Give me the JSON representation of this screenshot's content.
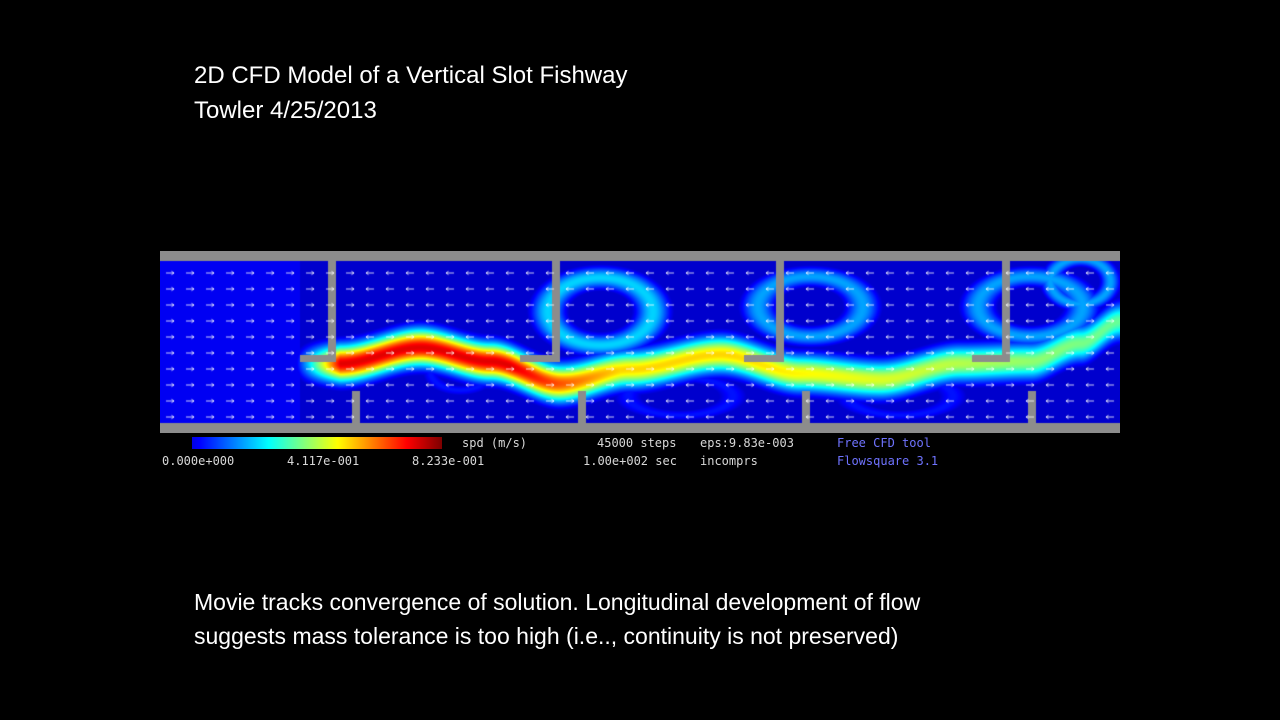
{
  "slide": {
    "title_line1": "2D CFD Model of a Vertical Slot Fishway",
    "title_line2": "Towler 4/25/2013",
    "caption_line1": "Movie tracks convergence of solution.  Longitudinal development of flow",
    "caption_line2": "suggests mass tolerance is too high (i.e.., continuity is not preserved)"
  },
  "legend": {
    "min_label": "0.000e+000",
    "mid_label": "4.117e-001",
    "max_label": "8.233e-001",
    "quantity": "spd (m/s)",
    "steps": "45000 steps",
    "time": "1.00e+002 sec",
    "eps": "eps:9.83e-003",
    "mode": "incomprs",
    "tool_line1": "Free CFD tool",
    "tool_line2": "Flowsquare 3.1"
  },
  "colors": {
    "background": "#000000",
    "wall": "#8c8c8c",
    "low_speed": "#0a10f5",
    "high_speed": "#ff1a00",
    "tool_text": "#6f73ff"
  }
}
